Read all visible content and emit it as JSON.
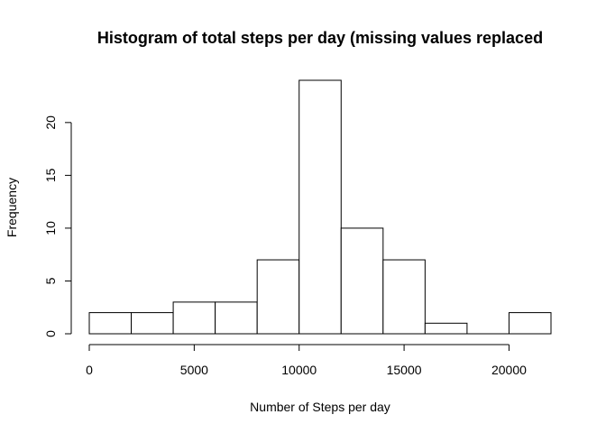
{
  "chart_data": {
    "type": "histogram",
    "title": "Histogram of total steps per day (missing values replaced",
    "xlabel": "Number of Steps per day",
    "ylabel": "Frequency",
    "bins": [
      {
        "from": 0,
        "to": 2000,
        "count": 2
      },
      {
        "from": 2000,
        "to": 4000,
        "count": 2
      },
      {
        "from": 4000,
        "to": 6000,
        "count": 3
      },
      {
        "from": 6000,
        "to": 8000,
        "count": 3
      },
      {
        "from": 8000,
        "to": 10000,
        "count": 7
      },
      {
        "from": 10000,
        "to": 12000,
        "count": 24
      },
      {
        "from": 12000,
        "to": 14000,
        "count": 10
      },
      {
        "from": 14000,
        "to": 16000,
        "count": 7
      },
      {
        "from": 16000,
        "to": 18000,
        "count": 1
      },
      {
        "from": 18000,
        "to": 20000,
        "count": 0
      },
      {
        "from": 20000,
        "to": 22000,
        "count": 2
      }
    ],
    "x_ticks": [
      0,
      5000,
      10000,
      15000,
      20000
    ],
    "y_ticks": [
      0,
      5,
      10,
      15,
      20
    ],
    "xlim": [
      0,
      22000
    ],
    "ylim": [
      0,
      24
    ],
    "grid": false,
    "colors": {
      "bar_fill": "#ffffff",
      "bar_stroke": "#000000",
      "axis": "#000000"
    }
  }
}
